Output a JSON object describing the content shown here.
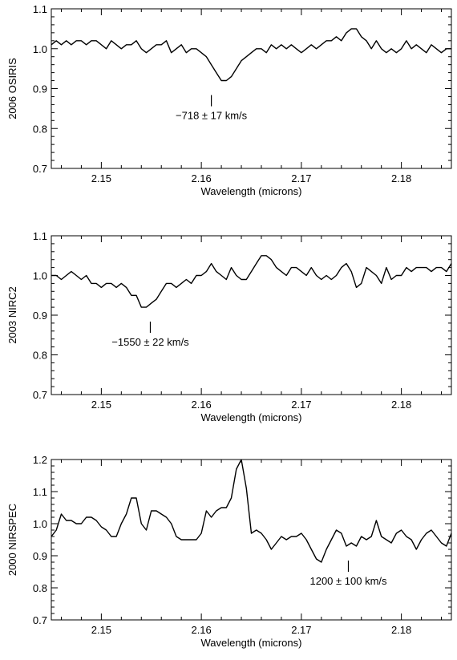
{
  "chart_data": [
    {
      "type": "line",
      "ylabel": "2006 OSIRIS",
      "xlabel": "Wavelength (microns)",
      "xlim": [
        2.145,
        2.185
      ],
      "ylim": [
        0.7,
        1.1
      ],
      "xticks": [
        2.15,
        2.16,
        2.17,
        2.18
      ],
      "xtick_labels": [
        "2.15",
        "2.16",
        "2.17",
        "2.18"
      ],
      "yticks": [
        0.7,
        0.8,
        0.9,
        1.0,
        1.1
      ],
      "ytick_labels": [
        "0.7",
        "0.8",
        "0.9",
        "1.0",
        "1.1"
      ],
      "annotation": {
        "text": "−718 ± 17 km/s",
        "x": 2.161
      },
      "series": [
        {
          "x": [
            2.145,
            2.1455,
            2.146,
            2.1465,
            2.147,
            2.1475,
            2.148,
            2.1485,
            2.149,
            2.1495,
            2.15,
            2.1505,
            2.151,
            2.1515,
            2.152,
            2.1525,
            2.153,
            2.1535,
            2.154,
            2.1545,
            2.155,
            2.1555,
            2.156,
            2.1565,
            2.157,
            2.1575,
            2.158,
            2.1585,
            2.159,
            2.1595,
            2.16,
            2.1605,
            2.161,
            2.1615,
            2.162,
            2.1625,
            2.163,
            2.1635,
            2.164,
            2.1645,
            2.165,
            2.1655,
            2.166,
            2.1665,
            2.167,
            2.1675,
            2.168,
            2.1685,
            2.169,
            2.1695,
            2.17,
            2.1705,
            2.171,
            2.1715,
            2.172,
            2.1725,
            2.173,
            2.1735,
            2.174,
            2.1745,
            2.175,
            2.1755,
            2.176,
            2.1765,
            2.177,
            2.1775,
            2.178,
            2.1785,
            2.179,
            2.1795,
            2.18,
            2.1805,
            2.181,
            2.1815,
            2.182,
            2.1825,
            2.183,
            2.1835,
            2.184,
            2.1845,
            2.185
          ],
          "y": [
            1.01,
            1.02,
            1.01,
            1.02,
            1.01,
            1.02,
            1.02,
            1.01,
            1.02,
            1.02,
            1.01,
            1.0,
            1.02,
            1.01,
            1.0,
            1.01,
            1.01,
            1.02,
            1.0,
            0.99,
            1.0,
            1.01,
            1.01,
            1.02,
            0.99,
            1.0,
            1.01,
            0.99,
            1.0,
            1.0,
            0.99,
            0.98,
            0.96,
            0.94,
            0.92,
            0.92,
            0.93,
            0.95,
            0.97,
            0.98,
            0.99,
            1.0,
            1.0,
            0.99,
            1.01,
            1.0,
            1.01,
            1.0,
            1.01,
            1.0,
            0.99,
            1.0,
            1.01,
            1.0,
            1.01,
            1.02,
            1.02,
            1.03,
            1.02,
            1.04,
            1.05,
            1.05,
            1.03,
            1.02,
            1.0,
            1.02,
            1.0,
            0.99,
            1.0,
            0.99,
            1.0,
            1.02,
            1.0,
            1.01,
            1.0,
            0.99,
            1.01,
            1.0,
            0.99,
            1.0,
            1.0
          ]
        }
      ]
    },
    {
      "type": "line",
      "ylabel": "2003 NIRC2",
      "xlabel": "Wavelength (microns)",
      "xlim": [
        2.145,
        2.185
      ],
      "ylim": [
        0.7,
        1.1
      ],
      "xticks": [
        2.15,
        2.16,
        2.17,
        2.18
      ],
      "xtick_labels": [
        "2.15",
        "2.16",
        "2.17",
        "2.18"
      ],
      "yticks": [
        0.7,
        0.8,
        0.9,
        1.0,
        1.1
      ],
      "ytick_labels": [
        "0.7",
        "0.8",
        "0.9",
        "1.0",
        "1.1"
      ],
      "annotation": {
        "text": "−1550 ± 22 km/s",
        "x": 2.1549
      },
      "series": [
        {
          "x": [
            2.145,
            2.1455,
            2.146,
            2.1465,
            2.147,
            2.1475,
            2.148,
            2.1485,
            2.149,
            2.1495,
            2.15,
            2.1505,
            2.151,
            2.1515,
            2.152,
            2.1525,
            2.153,
            2.1535,
            2.154,
            2.1545,
            2.155,
            2.1555,
            2.156,
            2.1565,
            2.157,
            2.1575,
            2.158,
            2.1585,
            2.159,
            2.1595,
            2.16,
            2.1605,
            2.161,
            2.1615,
            2.162,
            2.1625,
            2.163,
            2.1635,
            2.164,
            2.1645,
            2.165,
            2.1655,
            2.166,
            2.1665,
            2.167,
            2.1675,
            2.168,
            2.1685,
            2.169,
            2.1695,
            2.17,
            2.1705,
            2.171,
            2.1715,
            2.172,
            2.1725,
            2.173,
            2.1735,
            2.174,
            2.1745,
            2.175,
            2.1755,
            2.176,
            2.1765,
            2.177,
            2.1775,
            2.178,
            2.1785,
            2.179,
            2.1795,
            2.18,
            2.1805,
            2.181,
            2.1815,
            2.182,
            2.1825,
            2.183,
            2.1835,
            2.184,
            2.1845,
            2.185
          ],
          "y": [
            1.0,
            1.0,
            0.99,
            1.0,
            1.01,
            1.0,
            0.99,
            1.0,
            0.98,
            0.98,
            0.97,
            0.98,
            0.98,
            0.97,
            0.98,
            0.97,
            0.95,
            0.95,
            0.92,
            0.92,
            0.93,
            0.94,
            0.96,
            0.98,
            0.98,
            0.97,
            0.98,
            0.99,
            0.98,
            1.0,
            1.0,
            1.01,
            1.03,
            1.01,
            1.0,
            0.99,
            1.02,
            1.0,
            0.99,
            0.99,
            1.01,
            1.03,
            1.05,
            1.05,
            1.04,
            1.02,
            1.01,
            1.0,
            1.02,
            1.02,
            1.01,
            1.0,
            1.02,
            1.0,
            0.99,
            1.0,
            0.99,
            1.0,
            1.02,
            1.03,
            1.01,
            0.97,
            0.98,
            1.02,
            1.01,
            1.0,
            0.98,
            1.02,
            0.99,
            1.0,
            1.0,
            1.02,
            1.01,
            1.02,
            1.02,
            1.02,
            1.01,
            1.02,
            1.02,
            1.01,
            1.03
          ]
        }
      ]
    },
    {
      "type": "line",
      "ylabel": "2000 NIRSPEC",
      "xlabel": "Wavelength (microns)",
      "xlim": [
        2.145,
        2.185
      ],
      "ylim": [
        0.7,
        1.2
      ],
      "xticks": [
        2.15,
        2.16,
        2.17,
        2.18
      ],
      "xtick_labels": [
        "2.15",
        "2.16",
        "2.17",
        "2.18"
      ],
      "yticks": [
        0.7,
        0.8,
        0.9,
        1.0,
        1.1,
        1.2
      ],
      "ytick_labels": [
        "0.7",
        "0.8",
        "0.9",
        "1.0",
        "1.1",
        "1.2"
      ],
      "annotation": {
        "text": "1200 ± 100 km/s",
        "x": 2.1747
      },
      "series": [
        {
          "x": [
            2.145,
            2.1455,
            2.146,
            2.1465,
            2.147,
            2.1475,
            2.148,
            2.1485,
            2.149,
            2.1495,
            2.15,
            2.1505,
            2.151,
            2.1515,
            2.152,
            2.1525,
            2.153,
            2.1535,
            2.154,
            2.1545,
            2.155,
            2.1555,
            2.156,
            2.1565,
            2.157,
            2.1575,
            2.158,
            2.1585,
            2.159,
            2.1595,
            2.16,
            2.1605,
            2.161,
            2.1615,
            2.162,
            2.1625,
            2.163,
            2.1635,
            2.164,
            2.1645,
            2.165,
            2.1655,
            2.166,
            2.1665,
            2.167,
            2.1675,
            2.168,
            2.1685,
            2.169,
            2.1695,
            2.17,
            2.1705,
            2.171,
            2.1715,
            2.172,
            2.1725,
            2.173,
            2.1735,
            2.174,
            2.1745,
            2.175,
            2.1755,
            2.176,
            2.1765,
            2.177,
            2.1775,
            2.178,
            2.1785,
            2.179,
            2.1795,
            2.18,
            2.1805,
            2.181,
            2.1815,
            2.182,
            2.1825,
            2.183,
            2.1835,
            2.184,
            2.1845,
            2.185
          ],
          "y": [
            0.96,
            0.98,
            1.03,
            1.01,
            1.01,
            1.0,
            1.0,
            1.02,
            1.02,
            1.01,
            0.99,
            0.98,
            0.96,
            0.96,
            1.0,
            1.03,
            1.08,
            1.08,
            1.0,
            0.98,
            1.04,
            1.04,
            1.03,
            1.02,
            1.0,
            0.96,
            0.95,
            0.95,
            0.95,
            0.95,
            0.97,
            1.04,
            1.02,
            1.04,
            1.05,
            1.05,
            1.08,
            1.17,
            1.2,
            1.11,
            0.97,
            0.98,
            0.97,
            0.95,
            0.92,
            0.94,
            0.96,
            0.95,
            0.96,
            0.96,
            0.97,
            0.95,
            0.92,
            0.89,
            0.88,
            0.92,
            0.95,
            0.98,
            0.97,
            0.93,
            0.94,
            0.93,
            0.96,
            0.95,
            0.96,
            1.01,
            0.96,
            0.95,
            0.94,
            0.97,
            0.98,
            0.96,
            0.95,
            0.92,
            0.95,
            0.97,
            0.98,
            0.96,
            0.94,
            0.93,
            0.97
          ]
        }
      ]
    }
  ]
}
